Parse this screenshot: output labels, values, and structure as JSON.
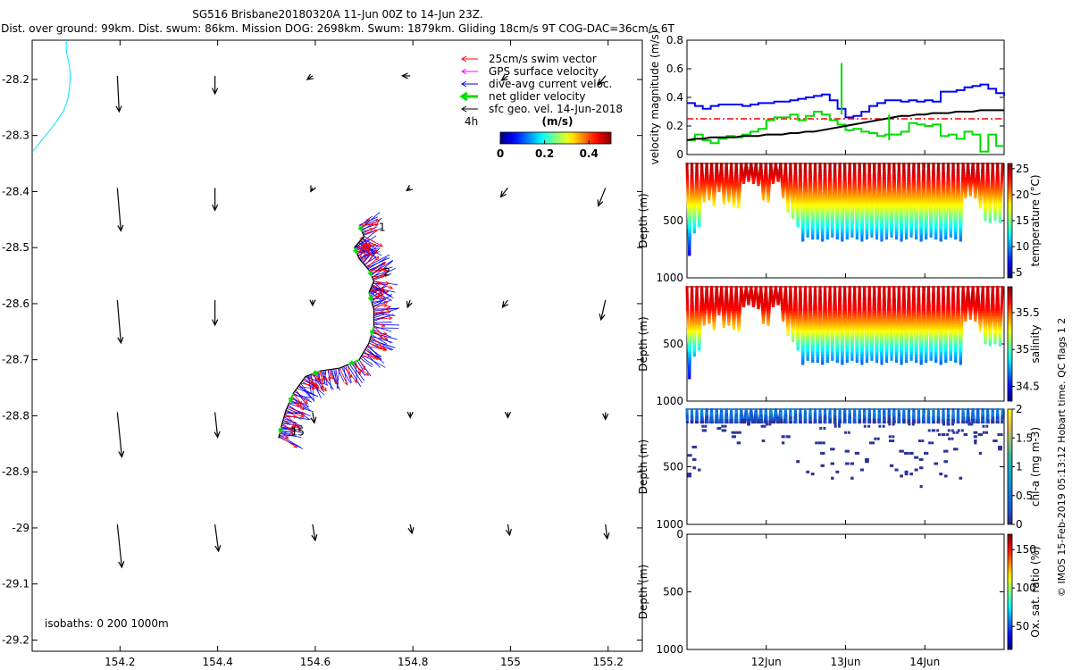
{
  "header": {
    "title": "SG516 Brisbane20180320A 11-Jun 00Z to 14-Jun 23Z.",
    "subtitle": "Dist. over ground: 99km. Dist. swum: 86km. Mission DOG: 2698km. Swum: 1879km. Gliding 18cm/s 9T COG-DAC=36cm/s 6T"
  },
  "side_note": "© IMOS 15-Feb-2019 05:13:12 Hobart time. QC flags 1 2",
  "colors": {
    "swim": "#ff0000",
    "gps": "#ff00ff",
    "dac": "#0000ff",
    "net": "#00dd00",
    "geo": "#000000",
    "coast": "#00e5ff",
    "mean_line": "#ff0000"
  },
  "map": {
    "xlim": [
      154.02,
      155.27
    ],
    "ylim": [
      -29.22,
      -28.13
    ],
    "xticks": [
      "154.2",
      "154.4",
      "154.6",
      "154.8",
      "155",
      "155.2"
    ],
    "xtick_values": [
      154.2,
      154.4,
      154.6,
      154.8,
      155.0,
      155.2
    ],
    "yticks": [
      "-28.2",
      "-28.3",
      "-28.4",
      "-28.5",
      "-28.6",
      "-28.7",
      "-28.8",
      "-28.9",
      "-29",
      "-29.1",
      "-29.2"
    ],
    "ytick_values": [
      -28.2,
      -28.3,
      -28.4,
      -28.5,
      -28.6,
      -28.7,
      -28.8,
      -28.9,
      -29.0,
      -29.1,
      -29.2
    ],
    "legend": {
      "items": [
        {
          "key": "swim",
          "label": "25cm/s swim vector"
        },
        {
          "key": "gps",
          "label": "GPS surface velocity"
        },
        {
          "key": "dac",
          "label": "dive-avg current veloc."
        },
        {
          "key": "net",
          "label": "net glider velocity"
        },
        {
          "key": "geo",
          "label": "sfc geo. vel. 14-Jun-2018"
        }
      ],
      "interval": "4h"
    },
    "colorbar": {
      "title": "(m/s)",
      "ticks": [
        "0",
        "0.2",
        "0.4"
      ],
      "tick_values": [
        0,
        0.2,
        0.4
      ],
      "range": [
        0,
        0.5
      ]
    },
    "isobaths": "isobaths: 0   200  1000m",
    "dive_labels": [
      {
        "text": "1",
        "lon": 154.73,
        "lat": -28.47
      },
      {
        "text": "2",
        "lon": 154.74,
        "lat": -28.55
      },
      {
        "text": "15",
        "lon": 154.55,
        "lat": -28.835
      }
    ],
    "coastline": [
      [
        154.09,
        -28.13
      ],
      [
        154.09,
        -28.15
      ],
      [
        154.095,
        -28.17
      ],
      [
        154.098,
        -28.19
      ],
      [
        154.097,
        -28.21
      ],
      [
        154.093,
        -28.235
      ],
      [
        154.085,
        -28.255
      ],
      [
        154.07,
        -28.275
      ],
      [
        154.055,
        -28.292
      ],
      [
        154.038,
        -28.31
      ],
      [
        154.02,
        -28.33
      ]
    ],
    "track": [
      [
        154.69,
        -28.46
      ],
      [
        154.7,
        -28.48
      ],
      [
        154.68,
        -28.5
      ],
      [
        154.69,
        -28.52
      ],
      [
        154.71,
        -28.54
      ],
      [
        154.72,
        -28.56
      ],
      [
        154.71,
        -28.58
      ],
      [
        154.72,
        -28.61
      ],
      [
        154.72,
        -28.64
      ],
      [
        154.71,
        -28.67
      ],
      [
        154.69,
        -28.7
      ],
      [
        154.65,
        -28.715
      ],
      [
        154.61,
        -28.72
      ],
      [
        154.58,
        -28.73
      ],
      [
        154.555,
        -28.76
      ],
      [
        154.54,
        -28.79
      ],
      [
        154.53,
        -28.82
      ],
      [
        154.525,
        -28.84
      ]
    ],
    "geo_vectors": [
      {
        "lon": 154.2,
        "lat": -28.2,
        "u": 0.02,
        "v": -0.4
      },
      {
        "lon": 154.4,
        "lat": -28.2,
        "u": 0.0,
        "v": -0.2
      },
      {
        "lon": 154.6,
        "lat": -28.2,
        "u": -0.06,
        "v": -0.04
      },
      {
        "lon": 154.8,
        "lat": -28.2,
        "u": -0.09,
        "v": 0.0
      },
      {
        "lon": 155.0,
        "lat": -28.2,
        "u": -0.07,
        "v": -0.05
      },
      {
        "lon": 155.2,
        "lat": -28.2,
        "u": -0.08,
        "v": -0.1
      },
      {
        "lon": 154.2,
        "lat": -28.4,
        "u": 0.04,
        "v": -0.48
      },
      {
        "lon": 154.4,
        "lat": -28.4,
        "u": 0.0,
        "v": -0.25
      },
      {
        "lon": 154.6,
        "lat": -28.4,
        "u": -0.02,
        "v": -0.04
      },
      {
        "lon": 154.8,
        "lat": -28.4,
        "u": -0.04,
        "v": -0.03
      },
      {
        "lon": 155.0,
        "lat": -28.4,
        "u": -0.08,
        "v": -0.1
      },
      {
        "lon": 155.2,
        "lat": -28.4,
        "u": -0.08,
        "v": -0.2
      },
      {
        "lon": 154.2,
        "lat": -28.6,
        "u": 0.04,
        "v": -0.48
      },
      {
        "lon": 154.4,
        "lat": -28.6,
        "u": 0.0,
        "v": -0.28
      },
      {
        "lon": 154.6,
        "lat": -28.6,
        "u": 0.0,
        "v": -0.06
      },
      {
        "lon": 154.8,
        "lat": -28.6,
        "u": -0.03,
        "v": -0.08
      },
      {
        "lon": 155.0,
        "lat": -28.6,
        "u": -0.06,
        "v": -0.08
      },
      {
        "lon": 155.2,
        "lat": -28.6,
        "u": -0.05,
        "v": -0.22
      },
      {
        "lon": 154.2,
        "lat": -28.8,
        "u": 0.05,
        "v": -0.5
      },
      {
        "lon": 154.4,
        "lat": -28.8,
        "u": 0.03,
        "v": -0.28
      },
      {
        "lon": 154.6,
        "lat": -28.8,
        "u": 0.02,
        "v": -0.12
      },
      {
        "lon": 154.8,
        "lat": -28.8,
        "u": 0.0,
        "v": -0.06
      },
      {
        "lon": 155.0,
        "lat": -28.8,
        "u": 0.0,
        "v": -0.06
      },
      {
        "lon": 155.2,
        "lat": -28.8,
        "u": 0.0,
        "v": -0.08
      },
      {
        "lon": 154.2,
        "lat": -29.0,
        "u": 0.05,
        "v": -0.48
      },
      {
        "lon": 154.4,
        "lat": -29.0,
        "u": 0.04,
        "v": -0.3
      },
      {
        "lon": 154.6,
        "lat": -29.0,
        "u": 0.03,
        "v": -0.18
      },
      {
        "lon": 154.8,
        "lat": -29.0,
        "u": 0.02,
        "v": -0.1
      },
      {
        "lon": 155.0,
        "lat": -29.0,
        "u": 0.02,
        "v": -0.12
      },
      {
        "lon": 155.2,
        "lat": -29.0,
        "u": 0.02,
        "v": -0.16
      }
    ]
  },
  "time_axis": {
    "range_days": [
      11.0,
      15.0
    ],
    "ticks": [
      "12Jun",
      "13Jun",
      "14Jun"
    ],
    "tick_values": [
      12,
      13,
      14
    ]
  },
  "chart_data": [
    {
      "type": "line",
      "title": "",
      "xlabel": "",
      "ylabel": "velocity magnitude (m/s)",
      "ylim": [
        0,
        0.8
      ],
      "yticks": [
        "0",
        "0.2",
        "0.4",
        "0.6",
        "0.8"
      ],
      "ytick_values": [
        0,
        0.2,
        0.4,
        0.6,
        0.8
      ],
      "x": [
        11.0,
        11.1,
        11.2,
        11.3,
        11.4,
        11.5,
        11.6,
        11.7,
        11.8,
        11.9,
        12.0,
        12.1,
        12.2,
        12.3,
        12.4,
        12.5,
        12.6,
        12.7,
        12.8,
        12.9,
        13.0,
        13.1,
        13.2,
        13.3,
        13.4,
        13.5,
        13.6,
        13.7,
        13.8,
        13.9,
        14.0,
        14.1,
        14.2,
        14.3,
        14.4,
        14.5,
        14.6,
        14.7,
        14.8,
        14.9,
        15.0
      ],
      "series": [
        {
          "name": "dive-avg current veloc.",
          "color_key": "dac",
          "values": [
            0.36,
            0.34,
            0.32,
            0.34,
            0.35,
            0.35,
            0.35,
            0.34,
            0.35,
            0.36,
            0.36,
            0.37,
            0.37,
            0.38,
            0.39,
            0.4,
            0.41,
            0.42,
            0.38,
            0.32,
            0.26,
            0.27,
            0.3,
            0.34,
            0.36,
            0.38,
            0.38,
            0.37,
            0.38,
            0.37,
            0.38,
            0.37,
            0.44,
            0.44,
            0.45,
            0.47,
            0.48,
            0.49,
            0.46,
            0.43,
            0.41
          ]
        },
        {
          "name": "net glider velocity",
          "color_key": "net",
          "values": [
            0.1,
            0.14,
            0.1,
            0.08,
            0.11,
            0.13,
            0.12,
            0.14,
            0.16,
            0.18,
            0.24,
            0.26,
            0.26,
            0.28,
            0.24,
            0.27,
            0.3,
            0.28,
            0.24,
            0.21,
            0.17,
            0.18,
            0.16,
            0.15,
            0.13,
            0.14,
            0.14,
            0.16,
            0.22,
            0.21,
            0.2,
            0.21,
            0.13,
            0.14,
            0.11,
            0.16,
            0.14,
            0.02,
            0.14,
            0.06,
            0.06
          ]
        },
        {
          "name": "net speed (black)",
          "color_key": "geo",
          "values": [
            0.1,
            0.11,
            0.11,
            0.12,
            0.12,
            0.12,
            0.12,
            0.13,
            0.13,
            0.13,
            0.14,
            0.14,
            0.14,
            0.15,
            0.15,
            0.16,
            0.16,
            0.17,
            0.18,
            0.19,
            0.2,
            0.21,
            0.22,
            0.23,
            0.24,
            0.25,
            0.26,
            0.27,
            0.27,
            0.28,
            0.28,
            0.29,
            0.29,
            0.29,
            0.3,
            0.3,
            0.3,
            0.31,
            0.31,
            0.31,
            0.31
          ]
        }
      ],
      "spikes": [
        {
          "x": 12.95,
          "value": 0.64,
          "color_key": "net"
        },
        {
          "x": 13.55,
          "value": 0.1,
          "color_key": "net"
        }
      ],
      "mean_line": {
        "value": 0.25,
        "style": "dash-dot",
        "color_key": "mean_line"
      }
    },
    {
      "type": "scatter",
      "ylabel": "Depth (m)",
      "ylim": [
        1000,
        0
      ],
      "yticks": [
        "500",
        "1000"
      ],
      "ytick_values": [
        500,
        1000
      ],
      "colorbar": {
        "label": "temperature (°C)",
        "ticks": [
          "5",
          "10",
          "15",
          "20",
          "25"
        ],
        "tick_values": [
          5,
          10,
          15,
          20,
          25
        ],
        "range": [
          4,
          26
        ]
      },
      "dives": {
        "start_day": 11.0,
        "end_day": 14.98,
        "count": 64
      },
      "max_depths": [
        800,
        600,
        560,
        340,
        320,
        380,
        250,
        350,
        340,
        380,
        400,
        180,
        160,
        180,
        200,
        320,
        340,
        180,
        160,
        300,
        420,
        480,
        560,
        680,
        640,
        660,
        660,
        680,
        660,
        640,
        660,
        680,
        660,
        640,
        660,
        680,
        660,
        640,
        660,
        680,
        660,
        640,
        660,
        680,
        660,
        640,
        660,
        680,
        660,
        640,
        660,
        680,
        660,
        640,
        660,
        680,
        300,
        280,
        300,
        400,
        500,
        520,
        500,
        520
      ],
      "profile": [
        [
          0,
          25
        ],
        [
          100,
          24
        ],
        [
          200,
          22
        ],
        [
          300,
          19.5
        ],
        [
          400,
          17
        ],
        [
          500,
          14
        ],
        [
          600,
          11
        ],
        [
          700,
          8.5
        ],
        [
          800,
          6.5
        ],
        [
          1000,
          5
        ]
      ]
    },
    {
      "type": "scatter",
      "ylabel": "Depth (m)",
      "ylim": [
        1000,
        0
      ],
      "yticks": [
        "500",
        "1000"
      ],
      "ytick_values": [
        500,
        1000
      ],
      "colorbar": {
        "label": "salinity",
        "ticks": [
          "34.5",
          "35",
          "35.5"
        ],
        "tick_values": [
          34.5,
          35.0,
          35.5
        ],
        "range": [
          34.3,
          35.85
        ]
      },
      "dives": {
        "start_day": 11.0,
        "end_day": 14.98,
        "count": 64
      },
      "max_depths": [
        800,
        600,
        560,
        340,
        320,
        380,
        250,
        350,
        340,
        380,
        400,
        180,
        160,
        180,
        200,
        320,
        340,
        180,
        160,
        300,
        420,
        480,
        560,
        680,
        640,
        660,
        660,
        680,
        660,
        640,
        660,
        680,
        660,
        640,
        660,
        680,
        660,
        640,
        660,
        680,
        660,
        640,
        660,
        680,
        660,
        640,
        660,
        680,
        660,
        640,
        660,
        680,
        660,
        640,
        660,
        680,
        300,
        280,
        300,
        400,
        500,
        520,
        500,
        520
      ],
      "profile": [
        [
          0,
          35.7
        ],
        [
          100,
          35.72
        ],
        [
          200,
          35.65
        ],
        [
          300,
          35.45
        ],
        [
          400,
          35.25
        ],
        [
          500,
          35.0
        ],
        [
          600,
          34.78
        ],
        [
          700,
          34.6
        ],
        [
          800,
          34.5
        ],
        [
          1000,
          34.45
        ]
      ]
    },
    {
      "type": "scatter",
      "ylabel": "Depth (m)",
      "ylim": [
        1000,
        0
      ],
      "yticks": [
        "500",
        "1000"
      ],
      "ytick_values": [
        500,
        1000
      ],
      "colorbar": {
        "label": "chl-a (mg m-3)",
        "ticks": [
          "0",
          "0.5",
          "1",
          "1.5",
          "2"
        ],
        "tick_values": [
          0,
          0.5,
          1.0,
          1.5,
          2.0
        ],
        "range": [
          0,
          2.0
        ]
      },
      "dives": {
        "start_day": 11.0,
        "end_day": 14.98,
        "count": 64
      },
      "max_depths": [
        800,
        600,
        560,
        340,
        320,
        380,
        250,
        350,
        340,
        380,
        400,
        180,
        160,
        180,
        200,
        320,
        340,
        180,
        160,
        300,
        420,
        480,
        560,
        680,
        640,
        660,
        660,
        680,
        660,
        640,
        660,
        680,
        660,
        640,
        660,
        680,
        660,
        640,
        660,
        680,
        660,
        640,
        660,
        680,
        660,
        640,
        660,
        680,
        660,
        640,
        660,
        680,
        660,
        640,
        660,
        680,
        300,
        280,
        300,
        400,
        500,
        520,
        500,
        520
      ],
      "profile": [
        [
          0,
          0.45
        ],
        [
          40,
          0.5
        ],
        [
          80,
          0.3
        ],
        [
          120,
          0.08
        ],
        [
          1000,
          0.02
        ]
      ]
    },
    {
      "type": "scatter",
      "ylabel": "Depth (m)",
      "ylim": [
        1000,
        0
      ],
      "yticks": [
        "0",
        "500",
        "1000"
      ],
      "ytick_values": [
        0,
        500,
        1000
      ],
      "colorbar": {
        "label": "Ox. sat. ratio (%)",
        "ticks": [
          "50",
          "100",
          "150"
        ],
        "tick_values": [
          50,
          100,
          150
        ],
        "range": [
          20,
          170
        ]
      },
      "dives": {
        "start_day": 11.0,
        "end_day": 14.98,
        "count": 0
      },
      "max_depths": [],
      "profile": []
    }
  ]
}
